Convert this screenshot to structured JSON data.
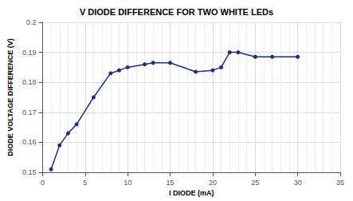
{
  "chart_data": {
    "type": "line",
    "title": "V DIODE DIFFERENCE FOR TWO WHITE LEDs",
    "xlabel": "I DIODE (mA)",
    "ylabel": "DIODE VOLTAGE DIFFERENCE (V)",
    "x": [
      1,
      2,
      3,
      4,
      6,
      8,
      9,
      10,
      12,
      13,
      15,
      18,
      20,
      21,
      22,
      23,
      25,
      27,
      30
    ],
    "values": [
      0.151,
      0.159,
      0.163,
      0.166,
      0.175,
      0.183,
      0.184,
      0.185,
      0.186,
      0.1865,
      0.1865,
      0.1835,
      0.184,
      0.185,
      0.19,
      0.19,
      0.1885,
      0.1885,
      0.1885
    ],
    "color": "#1a2f8a",
    "marker": "circle",
    "xlim": [
      0,
      35
    ],
    "ylim": [
      0.15,
      0.2
    ],
    "xticks": [
      0,
      5,
      10,
      15,
      20,
      25,
      30,
      35
    ],
    "yticks": [
      0.15,
      0.16,
      0.17,
      0.18,
      0.19,
      0.2
    ],
    "grid": true
  }
}
